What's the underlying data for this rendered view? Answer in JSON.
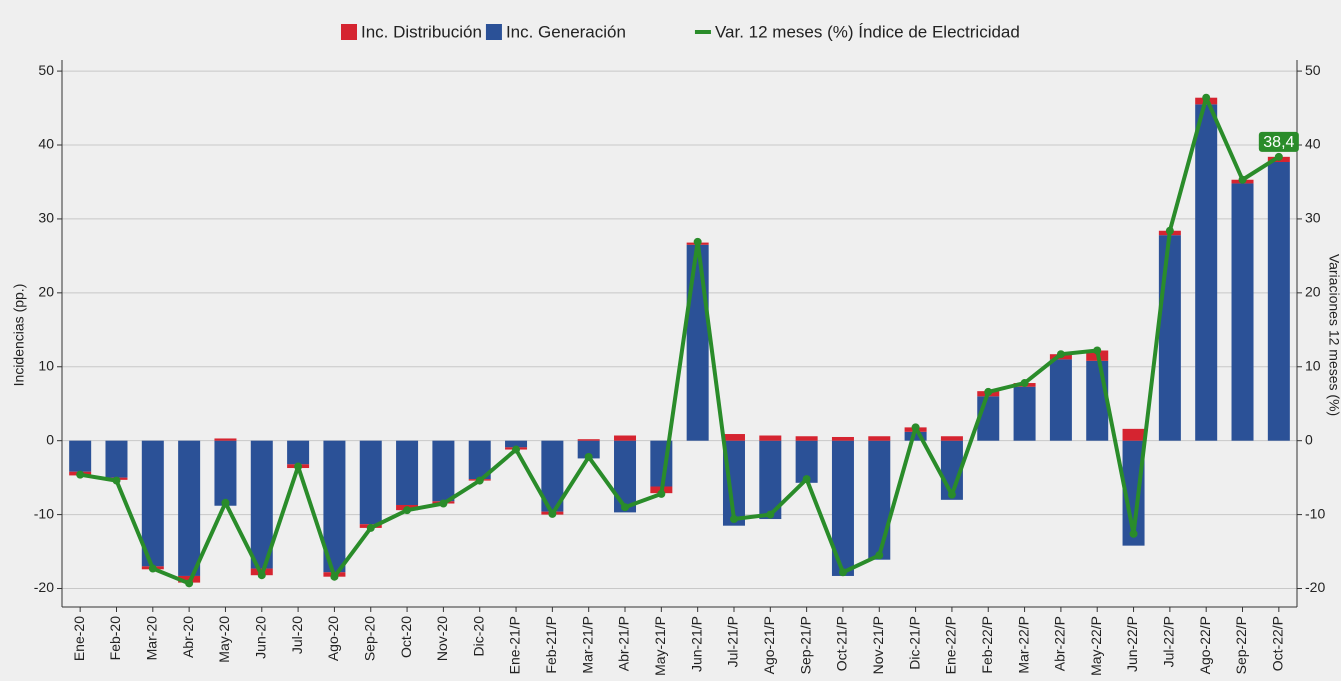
{
  "chart_data": {
    "type": "bar",
    "categories": [
      "Ene-20",
      "Feb-20",
      "Mar-20",
      "Abr-20",
      "May-20",
      "Jun-20",
      "Jul-20",
      "Ago-20",
      "Sep-20",
      "Oct-20",
      "Nov-20",
      "Dic-20",
      "Ene-21/P",
      "Feb-21/P",
      "Mar-21/P",
      "Abr-21/P",
      "May-21/P",
      "Jun-21/P",
      "Jul-21/P",
      "Ago-21/P",
      "Sep-21/P",
      "Oct-21/P",
      "Nov-21/P",
      "Dic-21/P",
      "Ene-22/P",
      "Feb-22/P",
      "Mar-22/P",
      "Abr-22/P",
      "May-22/P",
      "Jun-22/P",
      "Jul-22/P",
      "Ago-22/P",
      "Sep-22/P",
      "Oct-22/P"
    ],
    "series": [
      {
        "name": "Inc. Distribución",
        "color": "#d52430",
        "values": [
          -0.5,
          -0.3,
          -0.4,
          -0.9,
          0.3,
          -0.9,
          -0.5,
          -0.6,
          -0.5,
          -0.7,
          -0.3,
          -0.2,
          -0.3,
          -0.4,
          0.2,
          0.7,
          -0.9,
          0.3,
          0.9,
          0.7,
          0.6,
          0.5,
          0.6,
          0.6,
          0.6,
          0.7,
          0.5,
          0.7,
          1.4,
          1.6,
          0.6,
          0.9,
          0.5,
          0.7
        ]
      },
      {
        "name": "Inc. Generación",
        "color": "#2b5197",
        "values": [
          -4.2,
          -5.0,
          -17.0,
          -18.3,
          -8.8,
          -17.3,
          -3.2,
          -17.8,
          -11.3,
          -8.7,
          -8.2,
          -5.2,
          -0.9,
          -9.6,
          -2.4,
          -9.7,
          -6.2,
          26.5,
          -11.5,
          -10.6,
          -5.7,
          -18.3,
          -16.1,
          1.2,
          -8.0,
          6.0,
          7.3,
          11.0,
          10.8,
          -14.2,
          27.8,
          45.5,
          34.8,
          37.7
        ]
      },
      {
        "name": "Var. 12 meses (%) Índice de Electricidad",
        "color": "#2a8c2a",
        "type": "line",
        "axis": "y2",
        "values": [
          -4.6,
          -5.4,
          -17.3,
          -19.3,
          -8.4,
          -18.2,
          -3.5,
          -18.4,
          -11.8,
          -9.4,
          -8.5,
          -5.4,
          -1.2,
          -9.9,
          -2.2,
          -9.0,
          -7.2,
          26.9,
          -10.6,
          -10.0,
          -5.2,
          -17.8,
          -15.5,
          1.8,
          -7.3,
          6.6,
          7.8,
          11.7,
          12.2,
          -12.6,
          28.4,
          46.4,
          35.3,
          38.4
        ],
        "value_labels": [
          null,
          null,
          null,
          null,
          null,
          null,
          null,
          null,
          null,
          null,
          null,
          null,
          null,
          null,
          null,
          null,
          null,
          null,
          null,
          null,
          null,
          null,
          null,
          null,
          null,
          null,
          null,
          null,
          null,
          null,
          null,
          null,
          null,
          "38,4"
        ]
      }
    ],
    "y_label": "Incidencias (pp.)",
    "y2_label": "Variaciones 12 meses (%)",
    "ylim": [
      -22.5,
      51.5
    ],
    "yticks": [
      -20,
      -10,
      0,
      10,
      20,
      30,
      40,
      50
    ],
    "y2lim": [
      -22.5,
      51.5
    ],
    "y2ticks": [
      -20,
      -10,
      0,
      10,
      20,
      30,
      40,
      50
    ],
    "grid": true,
    "legend": "top"
  }
}
